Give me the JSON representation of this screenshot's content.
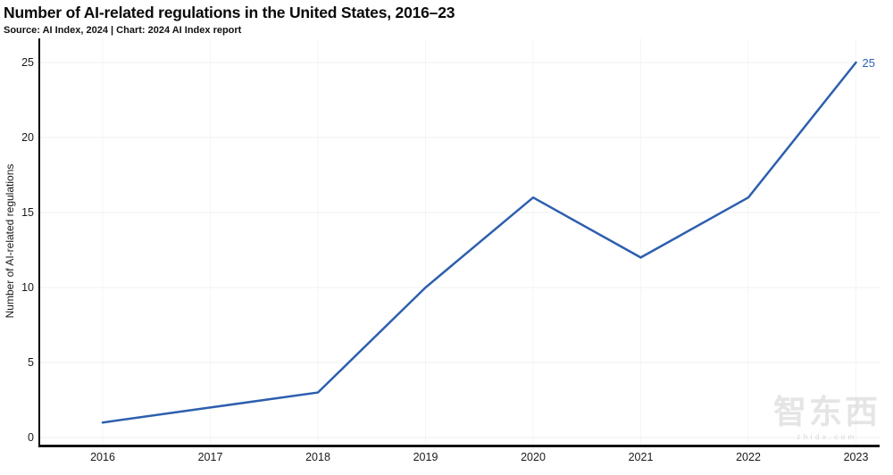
{
  "header": {
    "title": "Number of AI-related regulations in the United States, 2016–23",
    "source_line": "Source: AI Index, 2024 | Chart: 2024 AI Index report"
  },
  "chart_data": {
    "type": "line",
    "categories": [
      "2016",
      "2017",
      "2018",
      "2019",
      "2020",
      "2021",
      "2022",
      "2023"
    ],
    "values": [
      1,
      2,
      3,
      10,
      16,
      12,
      16,
      25
    ],
    "title": "Number of AI-related regulations in the United States, 2016–23",
    "xlabel": "",
    "ylabel": "Number of AI-related regulations",
    "ylim": [
      0,
      25
    ],
    "yticks": [
      0,
      5,
      10,
      15,
      20,
      25
    ],
    "grid": true,
    "legend": "none",
    "line_color": "#2d5fae",
    "end_label": "25",
    "end_label_color": "#2d64b5",
    "axis_color": "#000000",
    "h_grid_color": "#eff1f3",
    "v_grid_color": "#f4f5f6"
  },
  "watermark": {
    "logo_text": "智东西",
    "sub_text": "zhidx.com"
  }
}
